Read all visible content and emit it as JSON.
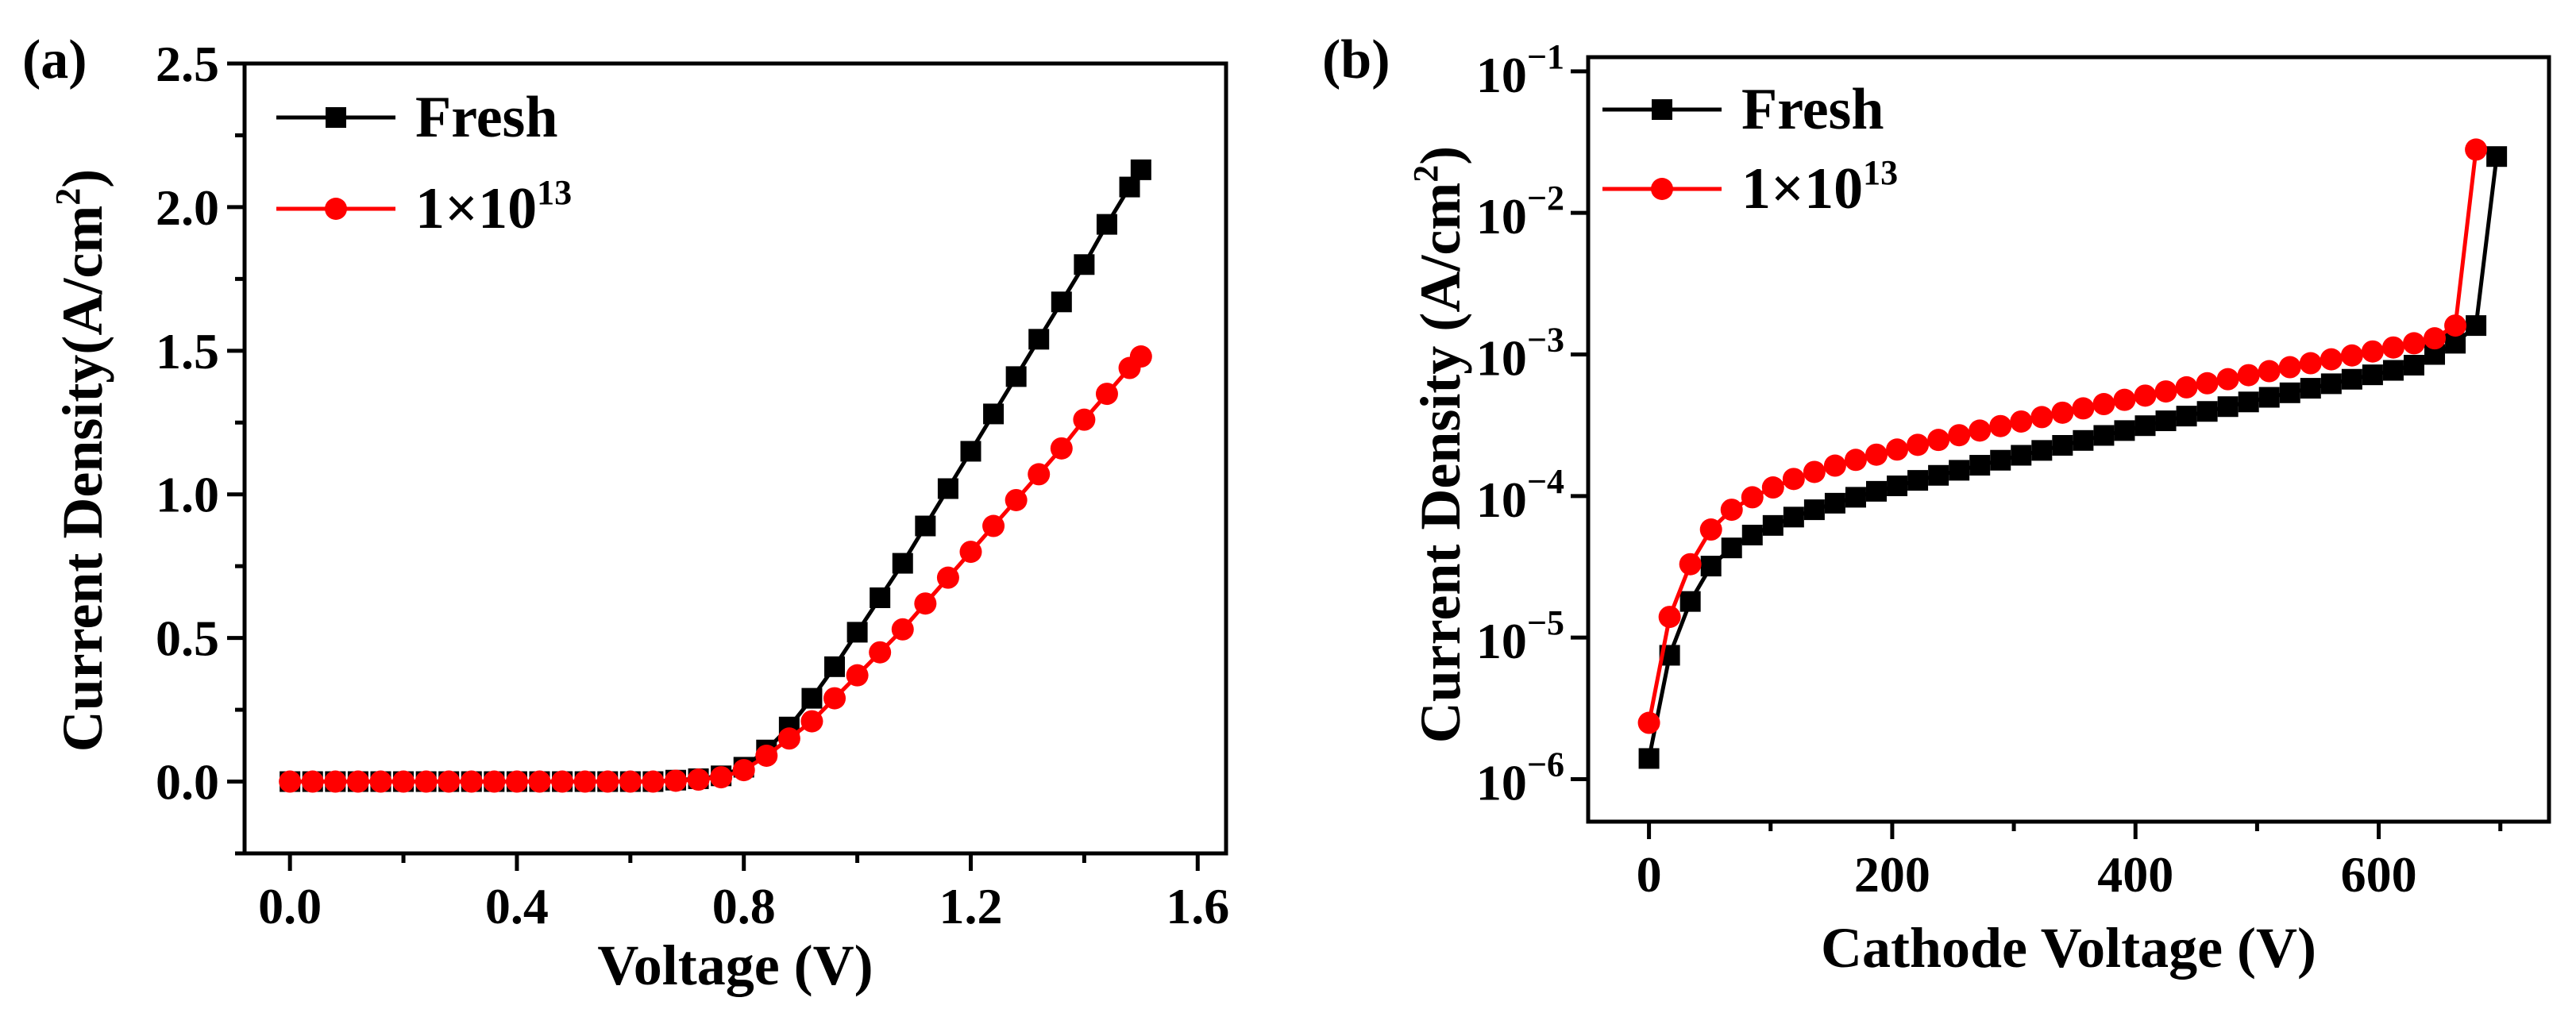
{
  "colors": {
    "fresh": "#000000",
    "irradiated": "#ff0000",
    "axis": "#000000"
  },
  "chart_data": [
    {
      "panel_label": "(a)",
      "type": "line",
      "xlabel": "Voltage (V)",
      "ylabel_main": "Current Density(A/cm",
      "ylabel_sup": "2",
      "ylabel_close": ")",
      "xlim": [
        -0.08,
        1.65
      ],
      "ylim": [
        -0.25,
        2.5
      ],
      "xticks": [
        0.0,
        0.4,
        0.8,
        1.2,
        1.6
      ],
      "xtick_labels": [
        "0.0",
        "0.4",
        "0.8",
        "1.2",
        "1.6"
      ],
      "yticks": [
        0.0,
        0.5,
        1.0,
        1.5,
        2.0,
        2.5
      ],
      "ytick_labels": [
        "0.0",
        "0.5",
        "1.0",
        "1.5",
        "2.0",
        "2.5"
      ],
      "legend_position": "top-left",
      "series": [
        {
          "name": "Fresh",
          "sup": "",
          "marker": "square",
          "color": "#000000",
          "x": [
            0.0,
            0.04,
            0.08,
            0.12,
            0.16,
            0.2,
            0.24,
            0.28,
            0.32,
            0.36,
            0.4,
            0.44,
            0.48,
            0.52,
            0.56,
            0.6,
            0.64,
            0.68,
            0.72,
            0.76,
            0.8,
            0.84,
            0.88,
            0.92,
            0.96,
            1.0,
            1.04,
            1.08,
            1.12,
            1.16,
            1.2,
            1.24,
            1.28,
            1.32,
            1.36,
            1.4,
            1.44,
            1.48,
            1.5
          ],
          "y": [
            0,
            0,
            0,
            0,
            0,
            0,
            0,
            0,
            0,
            0,
            0,
            0,
            0,
            0,
            0,
            0,
            0,
            0.005,
            0.01,
            0.02,
            0.05,
            0.11,
            0.19,
            0.29,
            0.4,
            0.52,
            0.64,
            0.76,
            0.89,
            1.02,
            1.15,
            1.28,
            1.41,
            1.54,
            1.67,
            1.8,
            1.94,
            2.07,
            2.13
          ]
        },
        {
          "name": "1×10",
          "sup": "13",
          "marker": "circle",
          "color": "#ff0000",
          "x": [
            0.0,
            0.04,
            0.08,
            0.12,
            0.16,
            0.2,
            0.24,
            0.28,
            0.32,
            0.36,
            0.4,
            0.44,
            0.48,
            0.52,
            0.56,
            0.6,
            0.64,
            0.68,
            0.72,
            0.76,
            0.8,
            0.84,
            0.88,
            0.92,
            0.96,
            1.0,
            1.04,
            1.08,
            1.12,
            1.16,
            1.2,
            1.24,
            1.28,
            1.32,
            1.36,
            1.4,
            1.44,
            1.48,
            1.5
          ],
          "y": [
            0,
            0,
            0,
            0,
            0,
            0,
            0,
            0,
            0,
            0,
            0,
            0,
            0,
            0,
            0,
            0,
            0,
            0.003,
            0.007,
            0.015,
            0.04,
            0.09,
            0.15,
            0.21,
            0.29,
            0.37,
            0.45,
            0.53,
            0.62,
            0.71,
            0.8,
            0.89,
            0.98,
            1.07,
            1.16,
            1.26,
            1.35,
            1.44,
            1.48
          ]
        }
      ]
    },
    {
      "panel_label": "(b)",
      "type": "line",
      "yscale": "log",
      "xlabel": "Cathode Voltage (V)",
      "ylabel_main": "Current Density (A/cm",
      "ylabel_sup": "2",
      "ylabel_close": ")",
      "xlim": [
        -50,
        740
      ],
      "ylim_log10": [
        -6.3,
        -0.9
      ],
      "xticks": [
        0,
        200,
        400,
        600
      ],
      "xtick_labels": [
        "0",
        "200",
        "400",
        "600"
      ],
      "yticks_log10": [
        -6,
        -5,
        -4,
        -3,
        -2,
        -1
      ],
      "ytick_labels": [
        {
          "base": "10",
          "exp": "−6"
        },
        {
          "base": "10",
          "exp": "−5"
        },
        {
          "base": "10",
          "exp": "−4"
        },
        {
          "base": "10",
          "exp": "−3"
        },
        {
          "base": "10",
          "exp": "−2"
        },
        {
          "base": "10",
          "exp": "−1"
        }
      ],
      "legend_position": "top-left",
      "series": [
        {
          "name": "Fresh",
          "sup": "",
          "marker": "square",
          "color": "#000000",
          "x": [
            0,
            17,
            34,
            51,
            68,
            85,
            102,
            119,
            136,
            153,
            170,
            187,
            204,
            221,
            238,
            255,
            272,
            289,
            306,
            323,
            340,
            357,
            374,
            391,
            408,
            425,
            442,
            459,
            476,
            493,
            510,
            527,
            544,
            561,
            578,
            595,
            612,
            629,
            646,
            663,
            680,
            697
          ],
          "y": [
            1.4e-06,
            7.5e-06,
            1.8e-05,
            3.2e-05,
            4.3e-05,
            5.3e-05,
            6.2e-05,
            7.1e-05,
            8e-05,
            8.9e-05,
            9.8e-05,
            0.000108,
            0.000118,
            0.000129,
            0.00014,
            0.000152,
            0.000165,
            0.000179,
            0.000194,
            0.00021,
            0.000228,
            0.000247,
            0.000268,
            0.00029,
            0.000314,
            0.00034,
            0.000367,
            0.000396,
            0.000428,
            0.000462,
            0.000498,
            0.000536,
            0.000577,
            0.000621,
            0.000668,
            0.000718,
            0.000772,
            0.00084,
            0.001,
            0.0012,
            0.0016,
            0.025
          ]
        },
        {
          "name": "1×10",
          "sup": "13",
          "marker": "circle",
          "color": "#ff0000",
          "x": [
            0,
            17,
            34,
            51,
            68,
            85,
            102,
            119,
            136,
            153,
            170,
            187,
            204,
            221,
            238,
            255,
            272,
            289,
            306,
            323,
            340,
            357,
            374,
            391,
            408,
            425,
            442,
            459,
            476,
            493,
            510,
            527,
            544,
            561,
            578,
            595,
            612,
            629,
            646,
            663,
            680
          ],
          "y": [
            2.5e-06,
            1.4e-05,
            3.3e-05,
            5.8e-05,
            8e-05,
            9.8e-05,
            0.000115,
            0.000132,
            0.000148,
            0.000164,
            0.00018,
            0.000196,
            0.000213,
            0.00023,
            0.000249,
            0.000269,
            0.00029,
            0.000312,
            0.000336,
            0.000361,
            0.000388,
            0.000416,
            0.000446,
            0.000478,
            0.000512,
            0.000548,
            0.000586,
            0.000626,
            0.000669,
            0.000714,
            0.000762,
            0.000813,
            0.000867,
            0.000924,
            0.000984,
            0.00105,
            0.00112,
            0.0012,
            0.0013,
            0.0016,
            0.028
          ]
        }
      ]
    }
  ]
}
